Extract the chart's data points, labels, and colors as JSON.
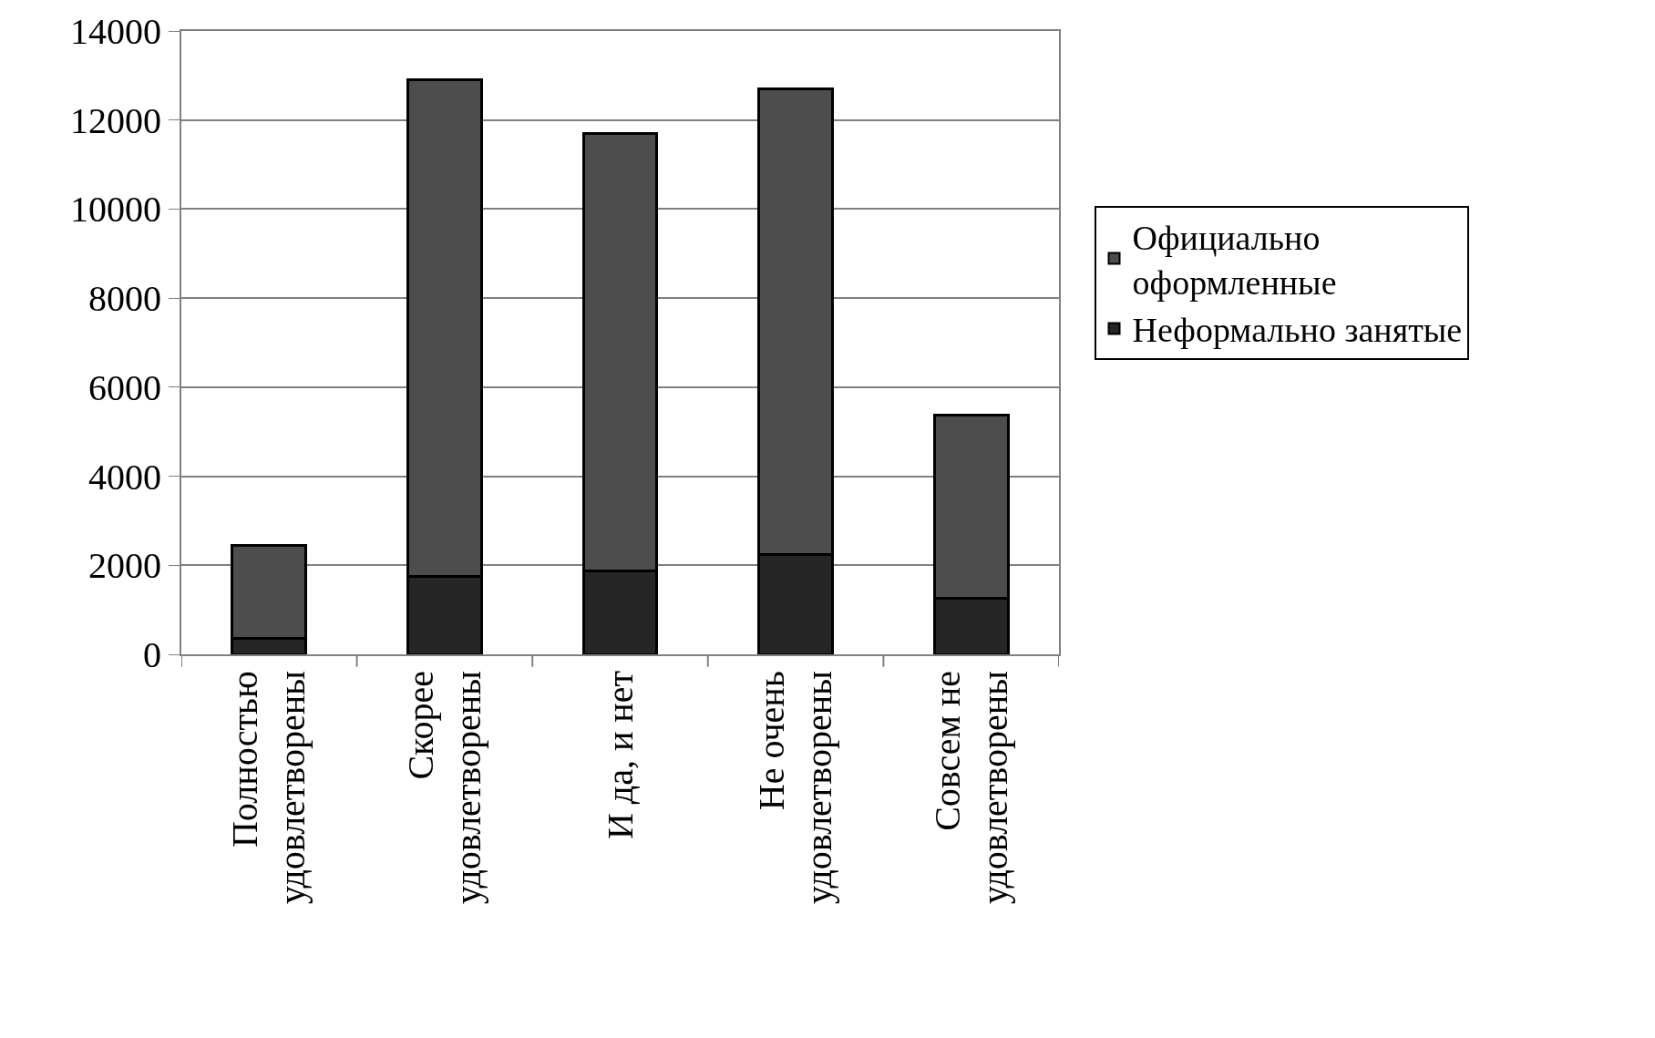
{
  "chart_data": {
    "type": "bar",
    "stacked": true,
    "categories": [
      "Полностью\nудовлетворены",
      "Скорее\nудовлетворены",
      "И да, и нет",
      "Не очень\nудовлетворены",
      "Совсем не\nудовлетворены"
    ],
    "series": [
      {
        "name": "Неформально занятые",
        "color": "#262626",
        "values": [
          350,
          1750,
          1880,
          2250,
          1250
        ]
      },
      {
        "name": "Официально\nоформленные",
        "color": "#4d4d4d",
        "values": [
          2100,
          11150,
          9820,
          10450,
          4130
        ]
      }
    ],
    "ylim": [
      0,
      14000
    ],
    "yticks": [
      0,
      2000,
      4000,
      6000,
      8000,
      10000,
      12000,
      14000
    ],
    "grid": "y",
    "legend": "right"
  }
}
